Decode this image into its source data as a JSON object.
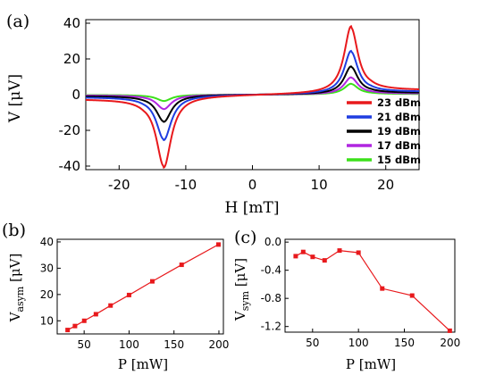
{
  "chart_data": [
    {
      "id": "a",
      "panel_label": "(a)",
      "type": "line",
      "xlabel": "H [mT]",
      "ylabel": "V [μV]",
      "xlim": [
        -25,
        25
      ],
      "ylim": [
        -42,
        42
      ],
      "xticks": [
        -20,
        -10,
        0,
        10,
        20
      ],
      "yticks": [
        -40,
        -20,
        0,
        20,
        40
      ],
      "legend_position": "bottom-right",
      "peak_position": {
        "negative_x": -13.3,
        "positive_x": 14.8
      },
      "series": [
        {
          "name": "23 dBm",
          "color": "#e8191c",
          "negative_peak": -40,
          "positive_peak": 37.5,
          "low_field_offset": -2.5,
          "high_field_offset": 2.5
        },
        {
          "name": "21 dBm",
          "color": "#1f3de0",
          "negative_peak": -25,
          "positive_peak": 24,
          "low_field_offset": -1.4,
          "high_field_offset": 1.6
        },
        {
          "name": "19 dBm",
          "color": "#000000",
          "negative_peak": -15,
          "positive_peak": 15.5,
          "low_field_offset": -0.8,
          "high_field_offset": 1.0
        },
        {
          "name": "17 dBm",
          "color": "#b026e0",
          "negative_peak": -8,
          "positive_peak": 9.5,
          "low_field_offset": -0.4,
          "high_field_offset": 0.6
        },
        {
          "name": "15 dBm",
          "color": "#3ce01a",
          "negative_peak": -3.5,
          "positive_peak": 6,
          "low_field_offset": -0.2,
          "high_field_offset": 0.3
        }
      ]
    },
    {
      "id": "b",
      "panel_label": "(b)",
      "type": "line",
      "xlabel": "P [mW]",
      "ylabel": "V",
      "ylabel_sub": "asym",
      "ylabel_unit": " [μV]",
      "xlim": [
        20,
        205
      ],
      "ylim": [
        5,
        41
      ],
      "xticks": [
        50,
        100,
        150,
        200
      ],
      "yticks": [
        10,
        20,
        30,
        40
      ],
      "color": "#e8191c",
      "x": [
        31.6,
        39.8,
        50.1,
        63.1,
        79.4,
        100,
        125.9,
        158.5,
        199.5
      ],
      "y": [
        6.5,
        8.0,
        10.0,
        12.5,
        15.8,
        19.8,
        25.0,
        31.3,
        39.0
      ]
    },
    {
      "id": "c",
      "panel_label": "(c)",
      "type": "line",
      "xlabel": "P [mW]",
      "ylabel": "V",
      "ylabel_sub": "sym",
      "ylabel_unit": " [μV]",
      "xlim": [
        20,
        205
      ],
      "ylim": [
        -1.28,
        0.04
      ],
      "xticks": [
        50,
        100,
        150,
        200
      ],
      "yticks": [
        "0.0",
        "-0.4",
        "-0.8",
        "-1.2"
      ],
      "ytick_values": [
        0.0,
        -0.4,
        -0.8,
        -1.2
      ],
      "color": "#e8191c",
      "x": [
        31.6,
        39.8,
        50.1,
        63.1,
        79.4,
        100,
        125.9,
        158.5,
        199.5
      ],
      "y": [
        -0.2,
        -0.14,
        -0.21,
        -0.26,
        -0.12,
        -0.15,
        -0.66,
        -0.76,
        -1.26
      ]
    }
  ]
}
